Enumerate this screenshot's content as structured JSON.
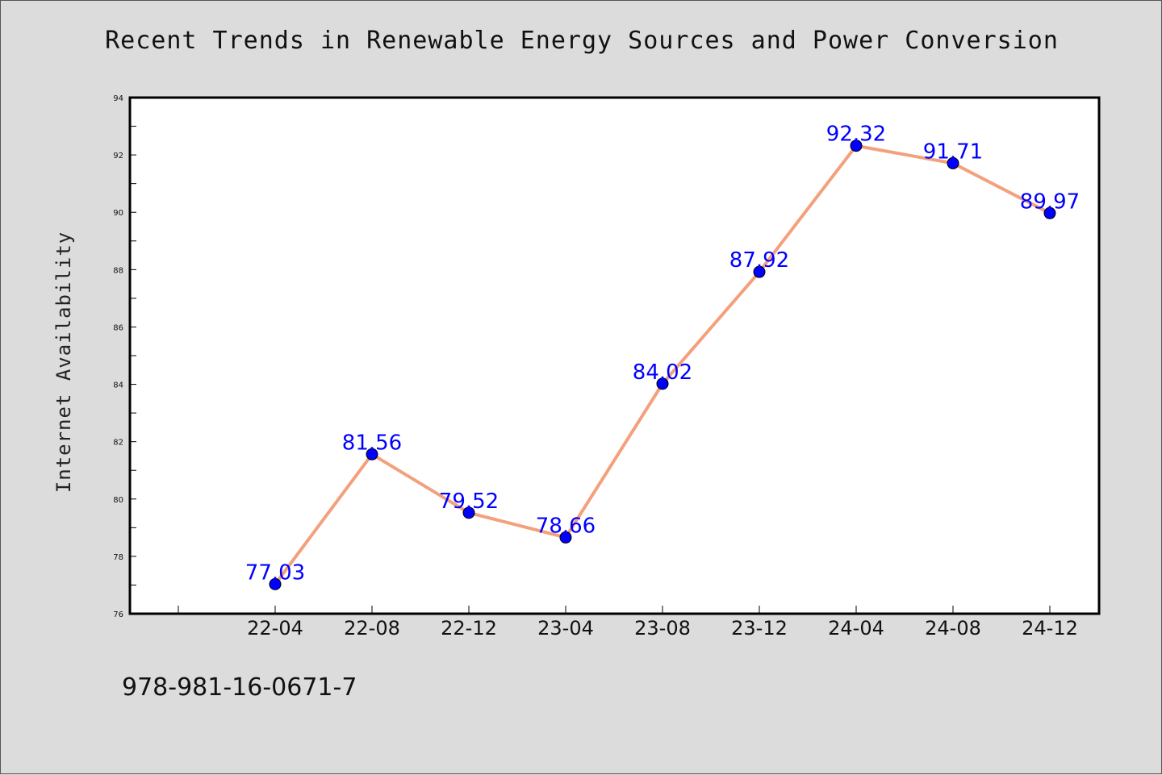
{
  "chart_data": {
    "type": "line",
    "title": "Recent Trends in Renewable Energy Sources and Power Conversion",
    "xlabel": "",
    "ylabel": "Internet Availability",
    "categories": [
      "22-04",
      "22-08",
      "22-12",
      "23-04",
      "23-08",
      "23-12",
      "24-04",
      "24-08",
      "24-12"
    ],
    "series": [
      {
        "values": [
          77.03,
          81.56,
          79.52,
          78.66,
          84.02,
          87.92,
          92.32,
          91.71,
          89.97
        ],
        "line_color": "#f4a07c",
        "marker_color": "#0000ff",
        "label_color": "#0000ff"
      }
    ],
    "data_labels": [
      "77.03",
      "81.56",
      "79.52",
      "78.66",
      "84.02",
      "87.92",
      "92.32",
      "91.71",
      "89.97"
    ],
    "ylim": [
      76,
      94
    ],
    "yticks": [
      "76",
      "78",
      "80",
      "82",
      "84",
      "86",
      "88",
      "90",
      "92",
      "94"
    ],
    "grid": false,
    "legend": "none",
    "background_color": "#dcdcdc",
    "plot_background_color": "#ffffff"
  },
  "footer": {
    "isbn": "978-981-16-0671-7"
  }
}
